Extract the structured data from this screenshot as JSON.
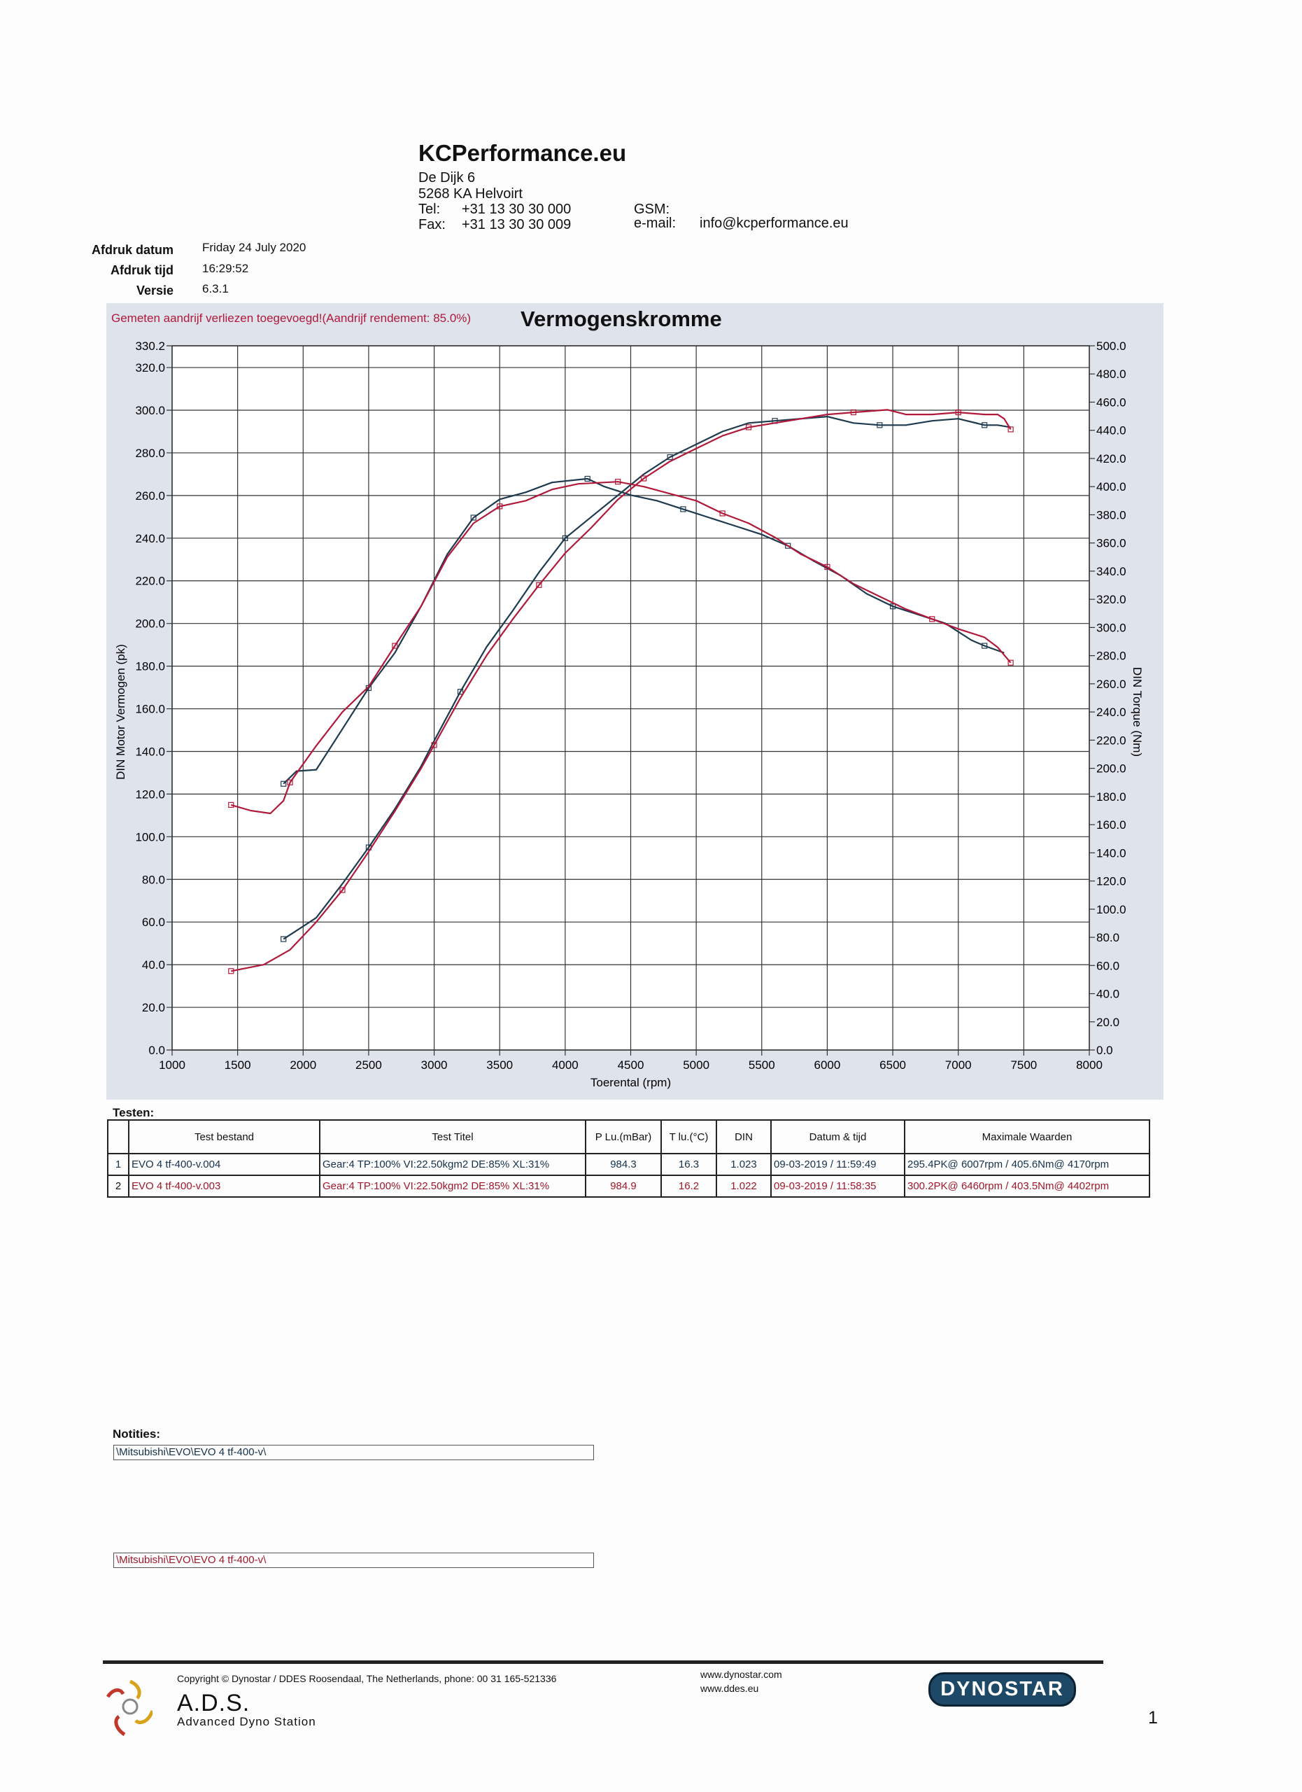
{
  "header": {
    "company": "KCPerformance.eu",
    "address1": "De Dijk 6",
    "address2": "5268 KA Helvoirt",
    "tel_label": "Tel:",
    "tel": "+31 13 30 30 000",
    "fax_label": "Fax:",
    "fax": "+31 13 30 30 009",
    "gsm_label": "GSM:",
    "email_label": "e-mail:",
    "email": "info@kcperformance.eu"
  },
  "meta": {
    "date_label": "Afdruk datum",
    "date": "Friday 24 July 2020",
    "time_label": "Afdruk tijd",
    "time": "16:29:52",
    "version_label": "Versie",
    "version": "6.3.1"
  },
  "chart_note": "Gemeten aandrijf verliezen toegevoegd!(Aandrijf rendement: 85.0%)",
  "chart_data": {
    "type": "line",
    "title": "Vermogenskromme",
    "xlabel": "Toerental (rpm)",
    "ylabel_left": "DIN Motor Vermogen (pk)",
    "ylabel_right": "DIN Torque (Nm)",
    "xlim": [
      1000,
      8000
    ],
    "ylim_left": [
      0,
      330.2
    ],
    "ylim_right": [
      0,
      500
    ],
    "x_ticks": [
      "1000",
      "1500",
      "2000",
      "2500",
      "3000",
      "3500",
      "4000",
      "4500",
      "5000",
      "5500",
      "6000",
      "6500",
      "7000",
      "7500",
      "8000"
    ],
    "y_ticks_left": [
      "0.0",
      "20.0",
      "40.0",
      "60.0",
      "80.0",
      "100.0",
      "120.0",
      "140.0",
      "160.0",
      "180.0",
      "200.0",
      "220.0",
      "240.0",
      "260.0",
      "280.0",
      "300.0",
      "320.0",
      "330.2"
    ],
    "y_ticks_right": [
      "0.0",
      "20.0",
      "40.0",
      "60.0",
      "80.0",
      "100.0",
      "120.0",
      "140.0",
      "160.0",
      "180.0",
      "200.0",
      "220.0",
      "240.0",
      "260.0",
      "280.0",
      "300.0",
      "320.0",
      "340.0",
      "360.0",
      "380.0",
      "400.0",
      "420.0",
      "440.0",
      "460.0",
      "480.0",
      "500.0"
    ],
    "grid": true,
    "colors": {
      "run1": "#1e3a4f",
      "run2": "#b0193a"
    },
    "series": [
      {
        "axis": "left",
        "run": 1,
        "points": [
          [
            1850,
            52
          ],
          [
            2000,
            58
          ],
          [
            2100,
            62
          ],
          [
            2300,
            78
          ],
          [
            2500,
            95
          ],
          [
            2700,
            113
          ],
          [
            2900,
            133
          ],
          [
            3000,
            145
          ],
          [
            3200,
            168
          ],
          [
            3400,
            189
          ],
          [
            3600,
            206
          ],
          [
            3800,
            224
          ],
          [
            4000,
            240
          ],
          [
            4200,
            250
          ],
          [
            4400,
            260
          ],
          [
            4600,
            270
          ],
          [
            4800,
            278
          ],
          [
            5000,
            284
          ],
          [
            5200,
            290
          ],
          [
            5400,
            294
          ],
          [
            5600,
            295
          ],
          [
            5800,
            296
          ],
          [
            6000,
            297
          ],
          [
            6200,
            294
          ],
          [
            6400,
            293
          ],
          [
            6600,
            293
          ],
          [
            6800,
            295
          ],
          [
            7000,
            296
          ],
          [
            7200,
            293
          ],
          [
            7300,
            293
          ],
          [
            7400,
            292
          ]
        ]
      },
      {
        "axis": "left",
        "run": 2,
        "points": [
          [
            1450,
            37
          ],
          [
            1700,
            40
          ],
          [
            1900,
            47
          ],
          [
            2100,
            60
          ],
          [
            2300,
            75
          ],
          [
            2500,
            93
          ],
          [
            2700,
            112
          ],
          [
            2900,
            132
          ],
          [
            3000,
            143
          ],
          [
            3200,
            165
          ],
          [
            3400,
            185
          ],
          [
            3600,
            202
          ],
          [
            3800,
            218
          ],
          [
            4000,
            233
          ],
          [
            4200,
            245
          ],
          [
            4400,
            258
          ],
          [
            4600,
            268
          ],
          [
            4800,
            276
          ],
          [
            5000,
            282
          ],
          [
            5200,
            288
          ],
          [
            5400,
            292
          ],
          [
            5600,
            294
          ],
          [
            5800,
            296
          ],
          [
            6000,
            298
          ],
          [
            6200,
            299
          ],
          [
            6460,
            300.2
          ],
          [
            6600,
            298
          ],
          [
            6800,
            298
          ],
          [
            7000,
            299
          ],
          [
            7200,
            298
          ],
          [
            7300,
            298
          ],
          [
            7350,
            296
          ],
          [
            7400,
            291
          ]
        ]
      },
      {
        "axis": "right",
        "run": 1,
        "points": [
          [
            1850,
            189
          ],
          [
            1950,
            198
          ],
          [
            2100,
            199
          ],
          [
            2300,
            228
          ],
          [
            2500,
            257
          ],
          [
            2700,
            282
          ],
          [
            2900,
            315
          ],
          [
            3100,
            352
          ],
          [
            3300,
            378
          ],
          [
            3500,
            391
          ],
          [
            3700,
            396
          ],
          [
            3900,
            403
          ],
          [
            4170,
            405.6
          ],
          [
            4300,
            400
          ],
          [
            4500,
            394
          ],
          [
            4700,
            390
          ],
          [
            4900,
            384
          ],
          [
            5100,
            378
          ],
          [
            5300,
            372
          ],
          [
            5500,
            366
          ],
          [
            5700,
            358
          ],
          [
            5900,
            347
          ],
          [
            6100,
            337
          ],
          [
            6300,
            324
          ],
          [
            6500,
            315
          ],
          [
            6700,
            309
          ],
          [
            6900,
            303
          ],
          [
            7100,
            291
          ],
          [
            7200,
            287
          ],
          [
            7350,
            282
          ]
        ]
      },
      {
        "axis": "right",
        "run": 2,
        "points": [
          [
            1450,
            174
          ],
          [
            1600,
            170
          ],
          [
            1750,
            168
          ],
          [
            1850,
            177
          ],
          [
            1900,
            190
          ],
          [
            2100,
            216
          ],
          [
            2300,
            240
          ],
          [
            2500,
            258
          ],
          [
            2700,
            287
          ],
          [
            2900,
            315
          ],
          [
            3100,
            350
          ],
          [
            3300,
            374
          ],
          [
            3500,
            386
          ],
          [
            3700,
            390
          ],
          [
            3900,
            398
          ],
          [
            4100,
            402
          ],
          [
            4402,
            403.5
          ],
          [
            4600,
            400
          ],
          [
            4800,
            395
          ],
          [
            5000,
            390
          ],
          [
            5200,
            381
          ],
          [
            5400,
            374
          ],
          [
            5600,
            364
          ],
          [
            5800,
            352
          ],
          [
            6000,
            343
          ],
          [
            6200,
            331
          ],
          [
            6400,
            322
          ],
          [
            6600,
            313
          ],
          [
            6800,
            306
          ],
          [
            7000,
            299
          ],
          [
            7200,
            293
          ],
          [
            7300,
            286
          ],
          [
            7400,
            275
          ]
        ]
      }
    ]
  },
  "tests": {
    "label": "Testen:",
    "headers": [
      "Test bestand",
      "Test Titel",
      "P Lu.(mBar)",
      "T lu.(°C)",
      "DIN",
      "Datum & tijd",
      "Maximale Waarden"
    ],
    "rows": [
      {
        "num": "1",
        "file": "EVO 4 tf-400-v.004",
        "title": "Gear:4 TP:100% VI:22.50kgm2 DE:85% XL:31%",
        "p": "984.3",
        "t": "16.3",
        "din": "1.023",
        "date": "09-03-2019 / 11:59:49",
        "max": "295.4PK@ 6007rpm / 405.6Nm@ 4170rpm"
      },
      {
        "num": "2",
        "file": "EVO 4 tf-400-v.003",
        "title": "Gear:4 TP:100% VI:22.50kgm2 DE:85% XL:31%",
        "p": "984.9",
        "t": "16.2",
        "din": "1.022",
        "date": "09-03-2019 / 11:58:35",
        "max": "300.2PK@ 6460rpm / 403.5Nm@ 4402rpm"
      }
    ]
  },
  "notes": {
    "label": "Notities:",
    "note1": "\\Mitsubishi\\EVO\\EVO 4 tf-400-v\\",
    "note2": "\\Mitsubishi\\EVO\\EVO 4 tf-400-v\\"
  },
  "footer": {
    "copyright": "Copyright ©  Dynostar / DDES  Roosendaal, The Netherlands, phone: 00 31 165-521336",
    "brand": "A.D.S.",
    "brand_sub": "Advanced Dyno Station",
    "url1": "www.dynostar.com",
    "url2": "www.ddes.eu",
    "badge": "DYNOSTAR",
    "page": "1"
  }
}
